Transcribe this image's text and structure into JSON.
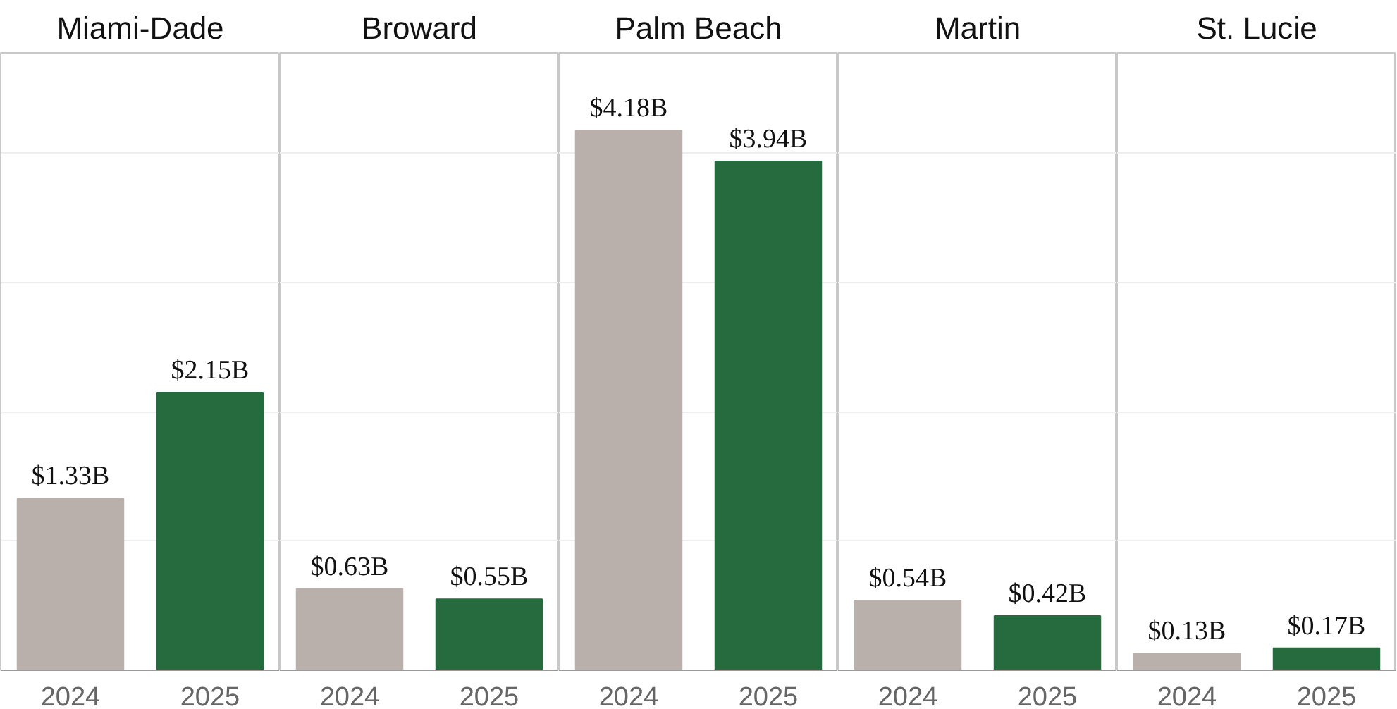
{
  "chart_data": [
    {
      "type": "bar",
      "title": "Miami-Dade",
      "categories": [
        "2024",
        "2025"
      ],
      "values": [
        1.33,
        2.15
      ],
      "colors": [
        "#bab0ab",
        "#256b3e"
      ],
      "value_labels": [
        "$1.33B",
        "$2.15B"
      ],
      "ylim": [
        0,
        4.78
      ],
      "yticks": [
        {
          "value": 1,
          "label": null
        },
        {
          "value": 2,
          "label": null
        },
        {
          "value": 3,
          "label": null
        },
        {
          "value": 4,
          "label": null
        }
      ],
      "grid": "y",
      "tick_labels": "x"
    },
    {
      "type": "bar",
      "title": "Broward",
      "categories": [
        "2024",
        "2025"
      ],
      "values": [
        0.63,
        0.55
      ],
      "colors": [
        "#bab0ab",
        "#256b3e"
      ],
      "value_labels": [
        "$0.63B",
        "$0.55B"
      ],
      "ylim": [
        0,
        4.78
      ],
      "yticks": [
        {
          "value": 1,
          "label": null
        },
        {
          "value": 2,
          "label": null
        },
        {
          "value": 3,
          "label": null
        },
        {
          "value": 4,
          "label": null
        }
      ],
      "grid": "y",
      "tick_labels": "x"
    },
    {
      "type": "bar",
      "title": "Palm Beach",
      "categories": [
        "2024",
        "2025"
      ],
      "values": [
        4.18,
        3.94
      ],
      "colors": [
        "#bab0ab",
        "#256b3e"
      ],
      "value_labels": [
        "$4.18B",
        "$3.94B"
      ],
      "ylim": [
        0,
        4.78
      ],
      "yticks": [
        {
          "value": 1,
          "label": null
        },
        {
          "value": 2,
          "label": null
        },
        {
          "value": 3,
          "label": null
        },
        {
          "value": 4,
          "label": null
        }
      ],
      "grid": "y",
      "tick_labels": "x"
    },
    {
      "type": "bar",
      "title": "Martin",
      "categories": [
        "2024",
        "2025"
      ],
      "values": [
        0.54,
        0.42
      ],
      "colors": [
        "#bab0ab",
        "#256b3e"
      ],
      "value_labels": [
        "$0.54B",
        "$0.42B"
      ],
      "ylim": [
        0,
        4.78
      ],
      "yticks": [
        {
          "value": 1,
          "label": null
        },
        {
          "value": 2,
          "label": null
        },
        {
          "value": 3,
          "label": null
        },
        {
          "value": 4,
          "label": null
        }
      ],
      "grid": "y",
      "tick_labels": "x"
    },
    {
      "type": "bar",
      "title": "St. Lucie",
      "categories": [
        "2024",
        "2025"
      ],
      "values": [
        0.13,
        0.17
      ],
      "colors": [
        "#bab0ab",
        "#256b3e"
      ],
      "value_labels": [
        "$0.13B",
        "$0.17B"
      ],
      "ylim": [
        0,
        4.78
      ],
      "yticks": [
        {
          "value": 1,
          "label": null
        },
        {
          "value": 2,
          "label": null
        },
        {
          "value": 3,
          "label": null
        },
        {
          "value": 4,
          "label": null
        }
      ],
      "grid": "y",
      "tick_labels": "x"
    }
  ]
}
